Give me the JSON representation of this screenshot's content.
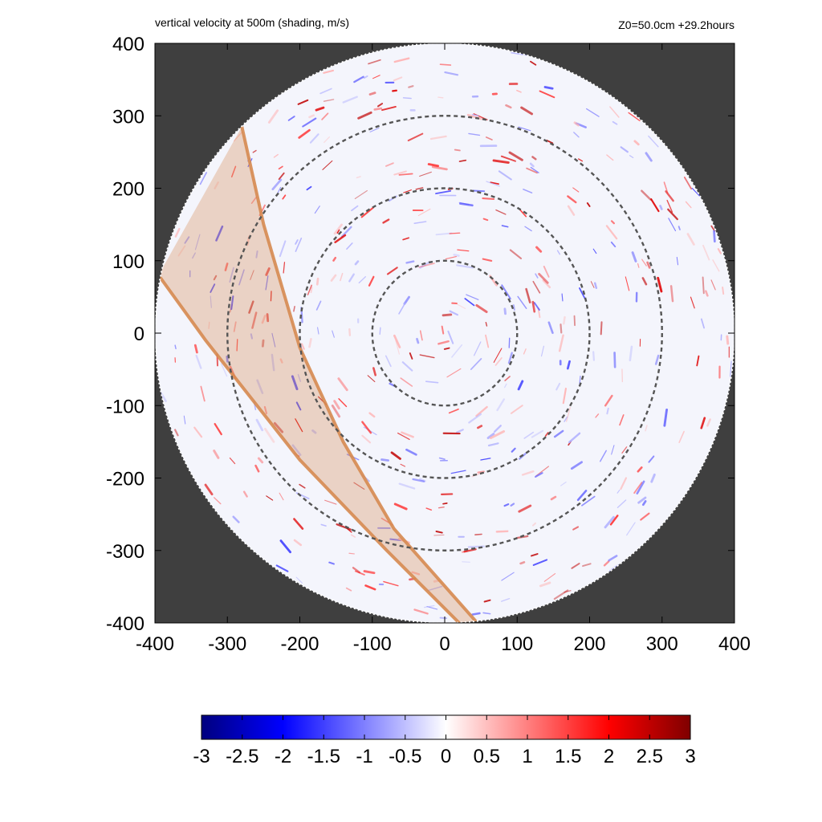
{
  "chart_data": {
    "type": "heatmap",
    "title": "vertical velocity at 500m (shading, m/s)",
    "info_right": "Z0=50.0cm  +29.2hours",
    "xlabel": "",
    "ylabel": "",
    "xlim": [
      -400,
      400
    ],
    "ylim": [
      -400,
      400
    ],
    "xticks": [
      -400,
      -300,
      -200,
      -100,
      0,
      100,
      200,
      300,
      400
    ],
    "yticks": [
      -400,
      -300,
      -200,
      -100,
      0,
      100,
      200,
      300,
      400
    ],
    "xtick_labels": [
      "-400",
      "-300",
      "-200",
      "-100",
      "0",
      "100",
      "200",
      "300",
      "400"
    ],
    "ytick_labels": [
      "-400",
      "-300",
      "-200",
      "-100",
      "0",
      "100",
      "200",
      "300",
      "400"
    ],
    "domain_radius": 400,
    "range_rings": [
      100,
      200,
      300
    ],
    "outside_color": "#3f3f3f",
    "highlight_band": {
      "color": "#d68a50",
      "edge_a": [
        [
          -280,
          285
        ],
        [
          -250,
          150
        ],
        [
          -200,
          -20
        ],
        [
          -140,
          -150
        ],
        [
          -70,
          -270
        ],
        [
          45,
          -400
        ]
      ],
      "edge_b": [
        [
          -395,
          80
        ],
        [
          -330,
          -10
        ],
        [
          -200,
          -175
        ],
        [
          -80,
          -300
        ],
        [
          20,
          -400
        ]
      ]
    },
    "colorbar": {
      "min": -3,
      "max": 3,
      "tick_labels": [
        "-3",
        "-2.5",
        "-2",
        "-1.5",
        "-1",
        "-0.5",
        "0",
        "0.5",
        "1",
        "1.5",
        "2",
        "2.5",
        "3"
      ],
      "tick_values": [
        -3,
        -2.5,
        -2,
        -1.5,
        -1,
        -0.5,
        0,
        0.5,
        1,
        1.5,
        2,
        2.5,
        3
      ],
      "colors": [
        "#00007f",
        "#0000ff",
        "#ffffff",
        "#ff0000",
        "#7f0000"
      ]
    }
  }
}
